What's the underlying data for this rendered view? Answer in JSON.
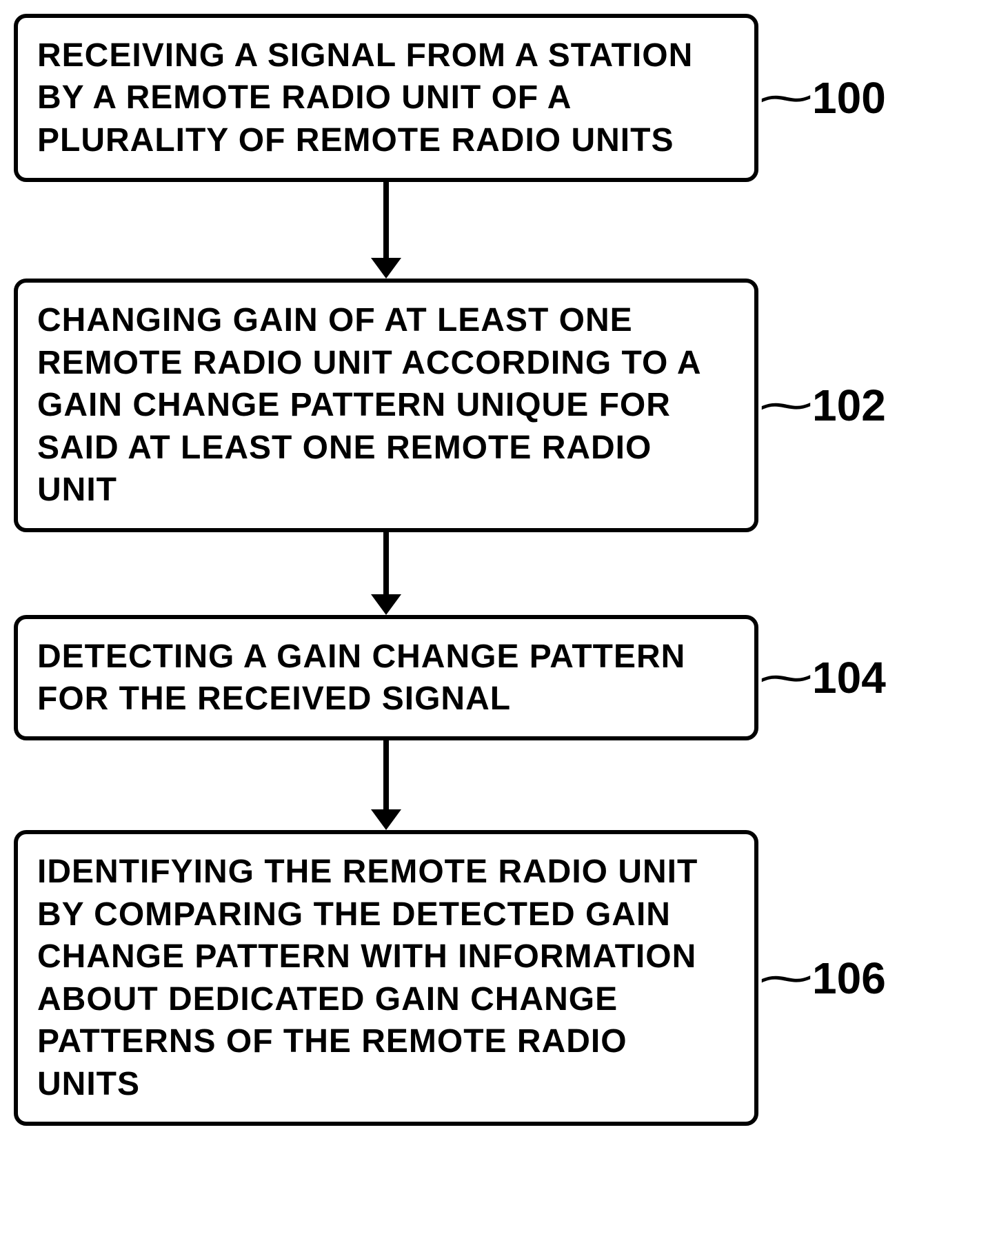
{
  "flowchart": {
    "background_color": "#ffffff",
    "box_border_color": "#000000",
    "box_border_width": 6,
    "box_border_radius": 18,
    "text_color": "#000000",
    "font_size": 48,
    "font_weight": 700,
    "label_font_size": 64,
    "arrow_color": "#000000",
    "arrow_line_width": 8,
    "steps": [
      {
        "text": "RECEIVING A SIGNAL FROM A STATION BY A REMOTE RADIO UNIT OF A PLURALITY OF REMOTE RADIO UNITS",
        "label": "100",
        "arrow_height": 140
      },
      {
        "text": "CHANGING GAIN OF AT LEAST ONE REMOTE RADIO UNIT ACCORDING TO A GAIN CHANGE PATTERN UNIQUE FOR SAID AT LEAST ONE REMOTE RADIO UNIT",
        "label": "102",
        "arrow_height": 120
      },
      {
        "text": "DETECTING A GAIN CHANGE PATTERN FOR THE RECEIVED SIGNAL",
        "label": "104",
        "arrow_height": 130
      },
      {
        "text": "IDENTIFYING THE REMOTE RADIO UNIT BY COMPARING THE DETECTED GAIN CHANGE PATTERN WITH INFORMATION ABOUT DEDICATED GAIN CHANGE PATTERNS OF THE REMOTE RADIO UNITS",
        "label": "106",
        "arrow_height": 0
      }
    ]
  }
}
